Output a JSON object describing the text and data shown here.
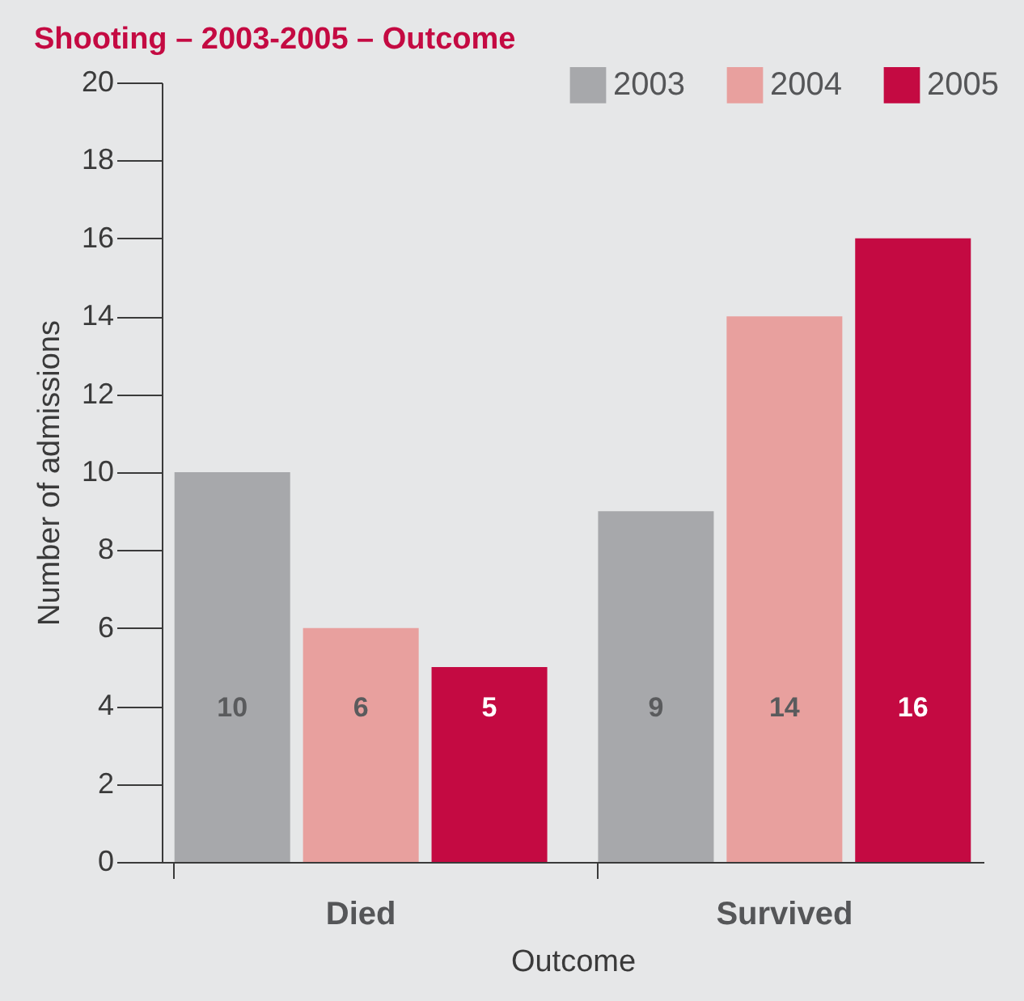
{
  "chart_data": {
    "type": "bar",
    "title": "Shooting – 2003-2005 – Outcome",
    "xlabel": "Outcome",
    "ylabel": "Number of admissions",
    "categories": [
      "Died",
      "Survived"
    ],
    "series": [
      {
        "name": "2003",
        "color": "#a7a8ab",
        "values": [
          10,
          9
        ]
      },
      {
        "name": "2004",
        "color": "#e8a09e",
        "values": [
          6,
          14
        ]
      },
      {
        "name": "2005",
        "color": "#c40a42",
        "values": [
          5,
          16
        ]
      }
    ],
    "ylim": [
      0,
      20
    ],
    "yticks": [
      0,
      2,
      4,
      6,
      8,
      10,
      12,
      14,
      16,
      18,
      20
    ],
    "grid": false,
    "legend": "top right",
    "data_labels": true
  }
}
